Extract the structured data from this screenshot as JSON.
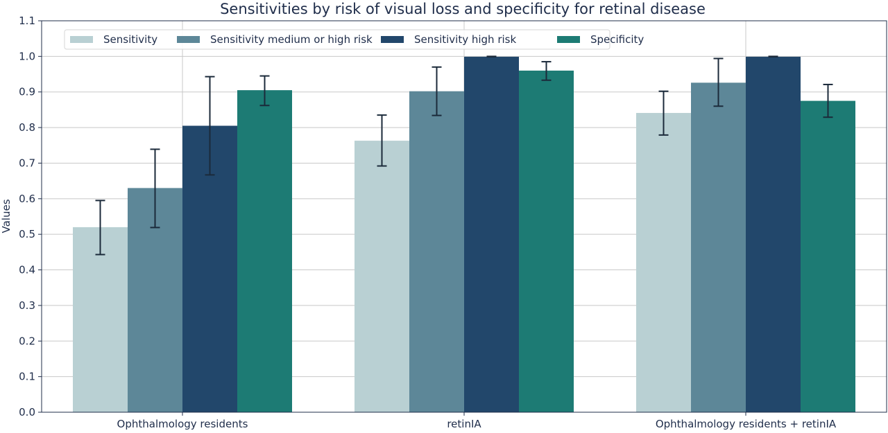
{
  "chart_data": {
    "type": "bar",
    "title": "Sensitivities by risk of visual loss and specificity for retinal disease",
    "xlabel": "",
    "ylabel": "Values",
    "ylim": [
      0.0,
      1.1
    ],
    "yticks": [
      "0.0",
      "0.1",
      "0.2",
      "0.3",
      "0.4",
      "0.5",
      "0.6",
      "0.7",
      "0.8",
      "0.9",
      "1.0",
      "1.1"
    ],
    "grid": true,
    "legend_position": "top-left",
    "categories": [
      "Ophthalmology residents",
      "retinIA",
      "Ophthalmology residents + retinIA"
    ],
    "series": [
      {
        "name": "Sensitivity",
        "color": "#b9d0d3",
        "values": [
          0.52,
          0.763,
          0.841
        ],
        "err_low": [
          0.443,
          0.692,
          0.779
        ],
        "err_high": [
          0.595,
          0.835,
          0.902
        ]
      },
      {
        "name": "Sensitivity medium or high risk",
        "color": "#5d8798",
        "values": [
          0.63,
          0.902,
          0.926
        ],
        "err_low": [
          0.519,
          0.834,
          0.86
        ],
        "err_high": [
          0.739,
          0.97,
          0.994
        ]
      },
      {
        "name": "Sensitivity high risk",
        "color": "#22476b",
        "values": [
          0.805,
          0.999,
          0.999
        ],
        "err_low": [
          0.667,
          0.999,
          0.999
        ],
        "err_high": [
          0.943,
          1.0,
          1.0
        ]
      },
      {
        "name": "Specificity",
        "color": "#1d7b74",
        "values": [
          0.905,
          0.96,
          0.875
        ],
        "err_low": [
          0.862,
          0.933,
          0.829
        ],
        "err_high": [
          0.945,
          0.985,
          0.921
        ]
      }
    ]
  }
}
